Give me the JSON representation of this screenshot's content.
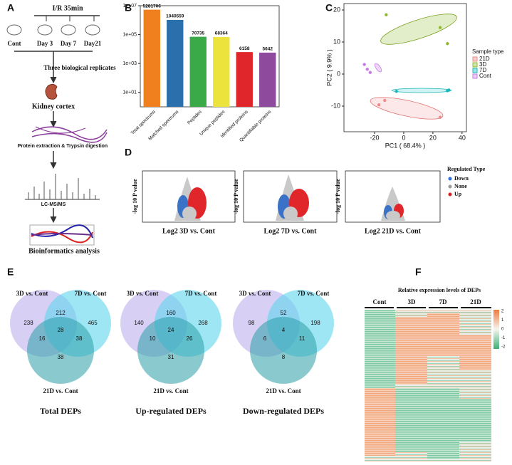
{
  "panel_labels": [
    "A",
    "B",
    "C",
    "D",
    "E",
    "F"
  ],
  "workflow": {
    "treatment": "I/R 35min",
    "groups": [
      "Cont",
      "Day 3",
      "Day 7",
      "Day21"
    ],
    "replicates": "Three biological replicates",
    "tissue": "Kidney cortex",
    "extraction": "Protein extraction & Trypsin digestion",
    "ms": "LC-MS/MS",
    "analysis": "Bioinformatics analysis"
  },
  "chart_data": [
    {
      "type": "bar",
      "log_scale": true,
      "categories": [
        "Total spectrums",
        "Matched spectrums",
        "Peptides",
        "Unique peptides",
        "Identified proteins",
        "Quantifiable proteins"
      ],
      "values": [
        5281706,
        1040559,
        70735,
        68364,
        6158,
        5642
      ],
      "colors": [
        "#f07f1d",
        "#2b70ad",
        "#3aaa48",
        "#ece33c",
        "#e0262a",
        "#8e4a9c"
      ],
      "ylim": [
        1,
        10000000
      ],
      "yticks": [
        {
          "value": 10,
          "label": "1e+01"
        },
        {
          "value": 1000,
          "label": "1e+03"
        },
        {
          "value": 100000,
          "label": "1e+05"
        },
        {
          "value": 10000000,
          "label": "1e+07"
        }
      ]
    },
    {
      "type": "scatter",
      "x_label": "PC1 ( 68.4% )",
      "y_label": "PC2 ( 9.9% )",
      "legend_title": "Sample type",
      "xlim": [
        -41,
        43
      ],
      "ylim": [
        -18,
        22
      ],
      "xticks": [
        -20,
        0,
        20,
        40
      ],
      "yticks": [
        -10,
        0,
        10,
        20
      ],
      "series": [
        {
          "name": "21D",
          "color": "#f08a8a",
          "x": [
            -13,
            -17,
            25
          ],
          "y": [
            -8.2,
            -9.6,
            -13.5
          ]
        },
        {
          "name": "3D",
          "color": "#8dbb2a",
          "x": [
            -12,
            25,
            30
          ],
          "y": [
            18.5,
            14.5,
            9.5
          ]
        },
        {
          "name": "7D",
          "color": "#17b9bd",
          "x": [
            -5,
            30,
            31
          ],
          "y": [
            -5.4,
            -5.2,
            -5
          ]
        },
        {
          "name": "Cont",
          "color": "#c77ce8",
          "x": [
            -27,
            -25,
            -23
          ],
          "y": [
            3,
            1.5,
            0.5
          ]
        }
      ]
    }
  ],
  "volcano": {
    "y_label": "-log 10 P value",
    "x_labels": [
      "Log2 3D vs. Cont",
      "Log2 7D vs. Cont",
      "Log2 21D vs. Cont"
    ],
    "legend_title": "Regulated Type",
    "legend": [
      "Down",
      "None",
      "Up"
    ]
  },
  "venn": {
    "sets": [
      "3D vs. Cont",
      "7D vs. Cont",
      "21D vs. Cont"
    ],
    "diagrams": [
      {
        "title": "Total DEPs",
        "counts": [
          238,
          212,
          465,
          16,
          28,
          38,
          38
        ]
      },
      {
        "title": "Up-regulated  DEPs",
        "counts": [
          140,
          160,
          268,
          10,
          24,
          26,
          31
        ]
      },
      {
        "title": "Down-regulated  DEPs",
        "counts": [
          98,
          52,
          198,
          6,
          4,
          11,
          8
        ]
      }
    ]
  },
  "heatmap": {
    "title": "Relative expression levels of DEPs",
    "columns": [
      "Cont",
      "3D",
      "7D",
      "21D"
    ],
    "scale_ticks": [
      2,
      1,
      0,
      -1,
      -2
    ]
  }
}
